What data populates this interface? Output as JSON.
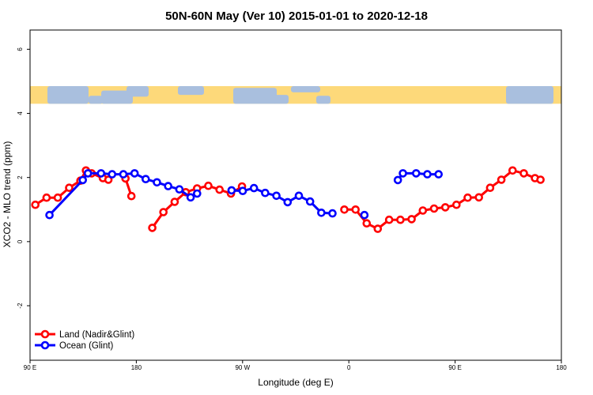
{
  "chart_data": {
    "type": "line",
    "title": "50N-60N May (Ver 10)   2015-01-01 to 2020-12-18",
    "xlabel": "Longitude (deg E)",
    "ylabel": "XCO2 - MLO trend (ppm)",
    "xlim": [
      -90,
      180
    ],
    "ylim": [
      -3.7,
      6.6
    ],
    "x_ticks": [
      {
        "value": -90,
        "label": "90 E"
      },
      {
        "value": -36,
        "label": "180"
      },
      {
        "value": 18,
        "label": "90 W"
      },
      {
        "value": 72,
        "label": "0"
      },
      {
        "value": 126,
        "label": "90 E"
      },
      {
        "value": 180,
        "label": "180"
      }
    ],
    "y_ticks": [
      {
        "value": -2,
        "label": "-2"
      },
      {
        "value": 0,
        "label": "0"
      },
      {
        "value": 2,
        "label": "2"
      },
      {
        "value": 4,
        "label": "4"
      },
      {
        "value": 6,
        "label": "6"
      }
    ],
    "map_band": {
      "ymin": 4.3,
      "ymax": 4.85,
      "ocean_color": "#a9bfde",
      "land_color": "#fdd97a"
    },
    "legend_position": "bottom-left",
    "series": [
      {
        "name": "Land (Nadir&Glint)",
        "color": "#ff0000",
        "segments": [
          [
            [
              -87.3,
              1.15
            ],
            [
              -81.6,
              1.37
            ],
            [
              -75.9,
              1.37
            ],
            [
              -70.1,
              1.68
            ],
            [
              -64.4,
              1.9
            ],
            [
              -61.6,
              2.22
            ],
            [
              -58.7,
              2.13
            ],
            [
              -53,
              1.98
            ],
            [
              -50.2,
              1.93
            ]
          ],
          [
            [
              -41.5,
              1.97
            ],
            [
              -38.5,
              1.42
            ]
          ],
          [
            [
              -27.9,
              0.43
            ],
            [
              -22.2,
              0.92
            ],
            [
              -16.5,
              1.24
            ],
            [
              -10.9,
              1.54
            ],
            [
              -5.1,
              1.66
            ],
            [
              0.6,
              1.74
            ],
            [
              6.3,
              1.62
            ],
            [
              12.1,
              1.5
            ],
            [
              17.7,
              1.72
            ]
          ],
          [
            [
              69.7,
              1.0
            ],
            [
              75.4,
              1.0
            ],
            [
              81.1,
              0.57
            ],
            [
              86.7,
              0.4
            ],
            [
              92.5,
              0.68
            ],
            [
              98.2,
              0.68
            ],
            [
              103.9,
              0.7
            ],
            [
              109.6,
              0.97
            ],
            [
              115.3,
              1.03
            ],
            [
              121,
              1.07
            ],
            [
              126.7,
              1.15
            ],
            [
              132.4,
              1.37
            ],
            [
              138.1,
              1.38
            ],
            [
              143.8,
              1.68
            ],
            [
              149.5,
              1.93
            ],
            [
              155.2,
              2.22
            ],
            [
              160.9,
              2.13
            ],
            [
              166.6,
              1.98
            ],
            [
              169.4,
              1.93
            ]
          ]
        ]
      },
      {
        "name": "Ocean (Glint)",
        "color": "#0000ff",
        "segments": [
          [
            [
              -80.1,
              0.83
            ],
            [
              -63.2,
              1.92
            ],
            [
              -60.6,
              2.13
            ],
            [
              -53.9,
              2.13
            ],
            [
              -48.3,
              2.1
            ],
            [
              -42.6,
              2.1
            ],
            [
              -36.9,
              2.13
            ],
            [
              -31.2,
              1.95
            ],
            [
              -25.5,
              1.85
            ],
            [
              -19.8,
              1.73
            ],
            [
              -14.1,
              1.63
            ],
            [
              -8.4,
              1.38
            ]
          ],
          [
            [
              -5.1,
              1.5
            ]
          ],
          [
            [
              12.4,
              1.6
            ],
            [
              18.1,
              1.58
            ],
            [
              23.8,
              1.67
            ],
            [
              29.5,
              1.52
            ],
            [
              35.2,
              1.43
            ],
            [
              40.9,
              1.23
            ],
            [
              46.6,
              1.43
            ],
            [
              52.3,
              1.25
            ],
            [
              58,
              0.9
            ],
            [
              63.7,
              0.88
            ]
          ],
          [
            [
              79.9,
              0.83
            ]
          ],
          [
            [
              96.9,
              1.92
            ],
            [
              99.5,
              2.13
            ],
            [
              106.2,
              2.13
            ],
            [
              111.9,
              2.1
            ],
            [
              117.6,
              2.1
            ]
          ]
        ]
      }
    ]
  }
}
